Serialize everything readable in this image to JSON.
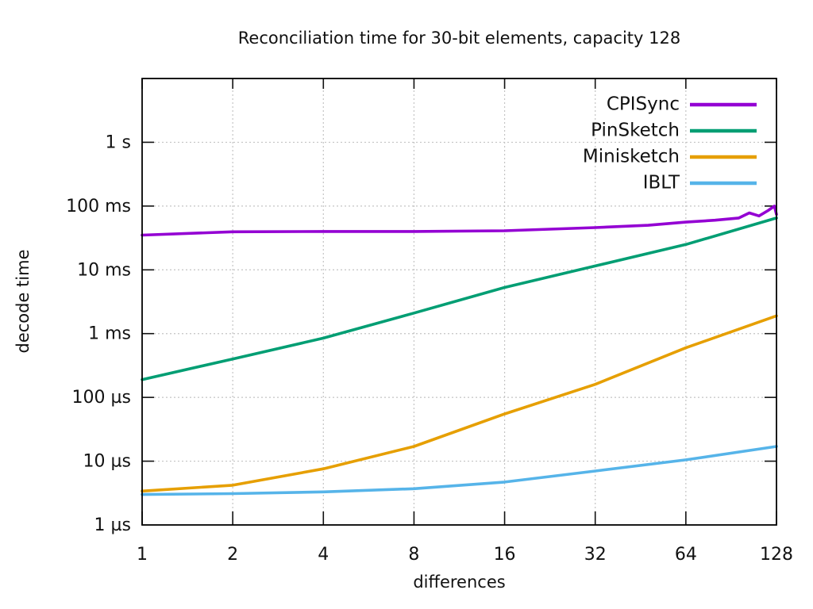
{
  "figure": {
    "background": "#ffffff"
  },
  "chart_data": {
    "type": "line",
    "title": "Reconciliation time for 30-bit elements, capacity 128",
    "xlabel": "differences",
    "ylabel": "decode time",
    "x_scale": "log2",
    "y_scale": "log10",
    "xlim": [
      1,
      128
    ],
    "ylim_microseconds": [
      1,
      10000000
    ],
    "x_ticks": [
      1,
      2,
      4,
      8,
      16,
      32,
      64,
      128
    ],
    "x_tick_labels": [
      "1",
      "2",
      "4",
      "8",
      "16",
      "32",
      "64",
      "128"
    ],
    "y_tick_values_microseconds": [
      1,
      10,
      100,
      1000,
      10000,
      100000,
      1000000
    ],
    "y_tick_labels": [
      "1 µs",
      "10 µs",
      "100 µs",
      "1 ms",
      "10 ms",
      "100 ms",
      "1 s"
    ],
    "grid": true,
    "legend_position": "top-right-inside",
    "value_unit": "microseconds",
    "series": [
      {
        "name": "CPISync",
        "color": "#9400d3",
        "x": [
          1,
          2,
          4,
          8,
          16,
          32,
          48,
          64,
          80,
          96,
          104,
          112,
          120,
          126,
          128
        ],
        "y_us": [
          35000,
          39500,
          40000,
          40000,
          41000,
          46000,
          50000,
          56000,
          60000,
          65000,
          78000,
          70000,
          85000,
          100000,
          74000
        ]
      },
      {
        "name": "PinSketch",
        "color": "#009e73",
        "x": [
          1,
          2,
          4,
          8,
          16,
          32,
          64,
          128
        ],
        "y_us": [
          190,
          400,
          850,
          2100,
          5300,
          11500,
          25000,
          65000
        ]
      },
      {
        "name": "Minisketch",
        "color": "#e69f00",
        "x": [
          1,
          2,
          4,
          8,
          16,
          32,
          64,
          128
        ],
        "y_us": [
          3.4,
          4.2,
          7.6,
          17,
          55,
          160,
          600,
          1900
        ]
      },
      {
        "name": "IBLT",
        "color": "#56b4e9",
        "x": [
          1,
          2,
          4,
          8,
          16,
          32,
          64,
          128
        ],
        "y_us": [
          3.0,
          3.1,
          3.3,
          3.7,
          4.7,
          7.0,
          10.5,
          17
        ]
      }
    ]
  }
}
